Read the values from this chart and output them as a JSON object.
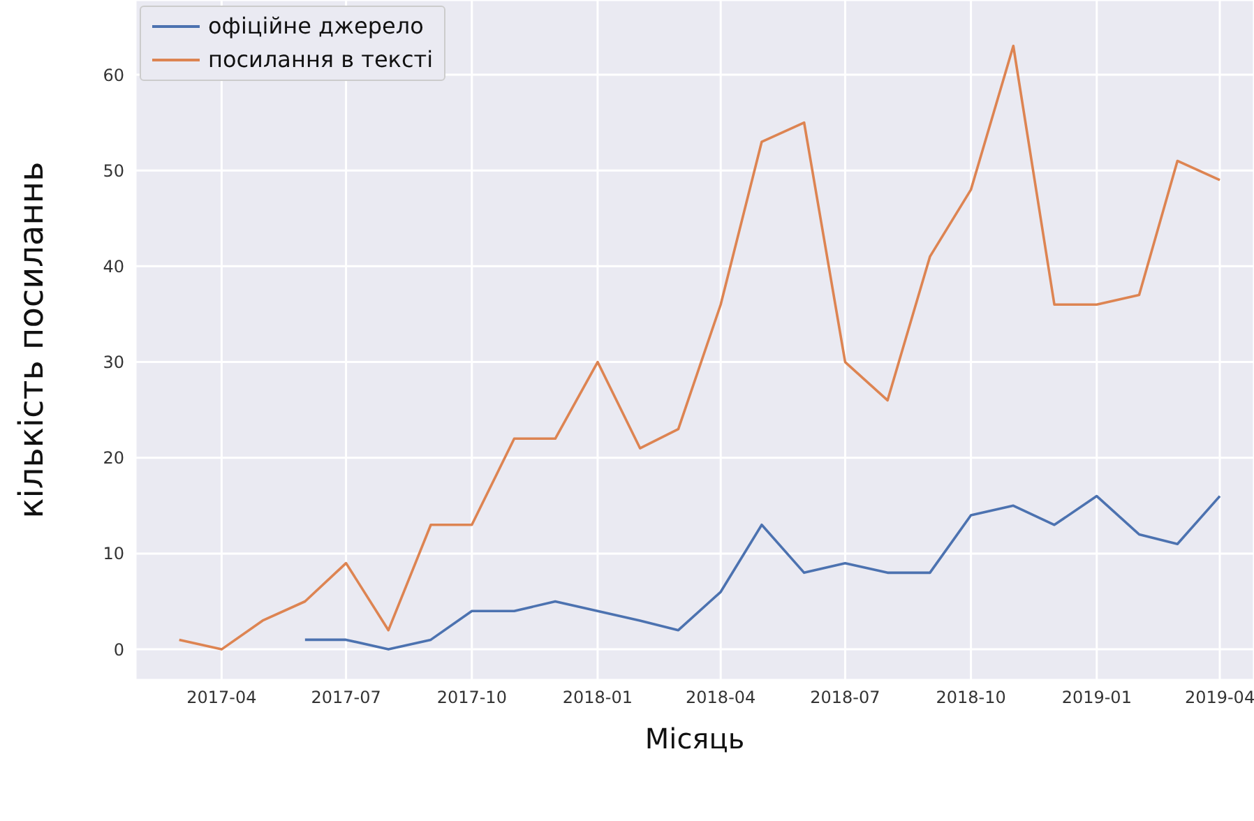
{
  "chart_data": {
    "type": "line",
    "xlabel": "Місяць",
    "ylabel": "кількість посиланнь",
    "xlim": [
      "2017-01-28",
      "2019-04-26"
    ],
    "xticks": [
      {
        "value": "2017-04",
        "label": "2017-04"
      },
      {
        "value": "2017-07",
        "label": "2017-07"
      },
      {
        "value": "2017-10",
        "label": "2017-10"
      },
      {
        "value": "2018-01",
        "label": "2018-01"
      },
      {
        "value": "2018-04",
        "label": "2018-04"
      },
      {
        "value": "2018-07",
        "label": "2018-07"
      },
      {
        "value": "2018-10",
        "label": "2018-10"
      },
      {
        "value": "2019-01",
        "label": "2019-01"
      },
      {
        "value": "2019-04",
        "label": "2019-04"
      }
    ],
    "ylim": [
      -3.2,
      67.8
    ],
    "yticks": [
      0,
      10,
      20,
      30,
      40,
      50,
      60
    ],
    "grid": true,
    "legend": "top left",
    "marker": "none",
    "line_style": "solid",
    "series": [
      {
        "name": "офіційне джерело",
        "color": "#4c72b0",
        "x": [
          "2017-06",
          "2017-07",
          "2017-08",
          "2017-09",
          "2017-10",
          "2017-11",
          "2017-12",
          "2018-01",
          "2018-02",
          "2018-03",
          "2018-04",
          "2018-05",
          "2018-06",
          "2018-07",
          "2018-08",
          "2018-09",
          "2018-10",
          "2018-11",
          "2018-12",
          "2019-01",
          "2019-02",
          "2019-03",
          "2019-04"
        ],
        "values": [
          1,
          1,
          0,
          1,
          4,
          4,
          5,
          4,
          3,
          2,
          6,
          13,
          8,
          9,
          8,
          8,
          14,
          15,
          13,
          16,
          12,
          11,
          16
        ]
      },
      {
        "name": "посилання в тексті",
        "color": "#dd8452",
        "x": [
          "2017-03",
          "2017-04",
          "2017-05",
          "2017-06",
          "2017-07",
          "2017-08",
          "2017-09",
          "2017-10",
          "2017-11",
          "2017-12",
          "2018-01",
          "2018-02",
          "2018-03",
          "2018-04",
          "2018-05",
          "2018-06",
          "2018-07",
          "2018-08",
          "2018-09",
          "2018-10",
          "2018-11",
          "2018-12",
          "2019-01",
          "2019-02",
          "2019-03",
          "2019-04"
        ],
        "values": [
          1,
          0,
          3,
          5,
          9,
          2,
          13,
          13,
          22,
          22,
          30,
          21,
          23,
          36,
          53,
          55,
          30,
          26,
          41,
          48,
          63,
          36,
          36,
          37,
          51,
          49
        ]
      }
    ]
  }
}
